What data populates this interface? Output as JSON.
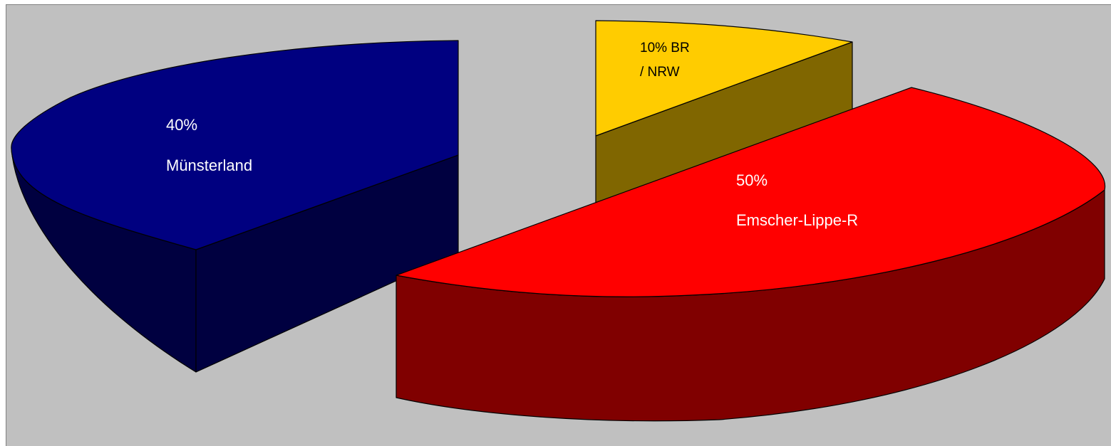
{
  "chart_data": {
    "type": "pie",
    "style": "3d-exploded",
    "slices": [
      {
        "label": "Emscher-Lippe-R",
        "value": 50,
        "pct_label": "50%",
        "name_label": "Emscher-Lippe-R",
        "color_top": "#ff0000",
        "color_side": "#800000"
      },
      {
        "label": "Münsterland",
        "value": 40,
        "pct_label": "40%",
        "name_label": "Münsterland",
        "color_top": "#000080",
        "color_side": "#000040"
      },
      {
        "label": "BR / NRW",
        "value": 10,
        "pct_label": "10% BR",
        "name_label": "/ NRW",
        "color_top": "#ffcc00",
        "color_side": "#806600"
      }
    ],
    "label_color": "#ffffff",
    "label_color_small": "#000000",
    "background": "#c0c0c0"
  }
}
